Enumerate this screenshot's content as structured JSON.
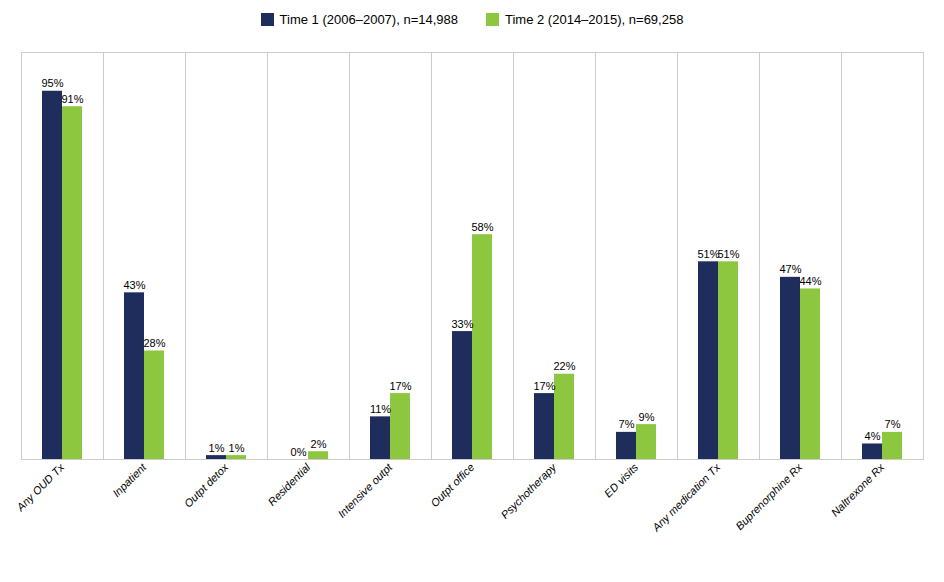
{
  "chart_data": {
    "type": "bar",
    "categories": [
      "Any OUD Tx",
      "Inpatient",
      "Outpt detox",
      "Residential",
      "Intensive outpt",
      "Outpt office",
      "Psychotherapy",
      "ED visits",
      "Any medication Tx",
      "Buprenorphine Rx",
      "Naltrexone Rx"
    ],
    "series": [
      {
        "name": "Time 1 (2006–2007), n=14,988",
        "color": "#1f2d5c",
        "values": [
          95,
          43,
          1,
          0,
          11,
          33,
          17,
          7,
          51,
          47,
          4
        ],
        "value_labels": [
          "95%",
          "43%",
          "1%",
          "0%",
          "11%",
          "33%",
          "17%",
          "7%",
          "51%",
          "47%",
          "4%"
        ]
      },
      {
        "name": "Time 2 (2014–2015), n=69,258",
        "color": "#8dc63f",
        "values": [
          91,
          28,
          1,
          2,
          17,
          58,
          22,
          9,
          51,
          44,
          7
        ],
        "value_labels": [
          "91%",
          "28%",
          "1%",
          "2%",
          "17%",
          "58%",
          "22%",
          "9%",
          "51%",
          "44%",
          "7%"
        ]
      }
    ],
    "ylim": [
      0,
      105
    ],
    "grid": true,
    "legend": "top",
    "data_labels": true,
    "tick_labels": "x"
  }
}
